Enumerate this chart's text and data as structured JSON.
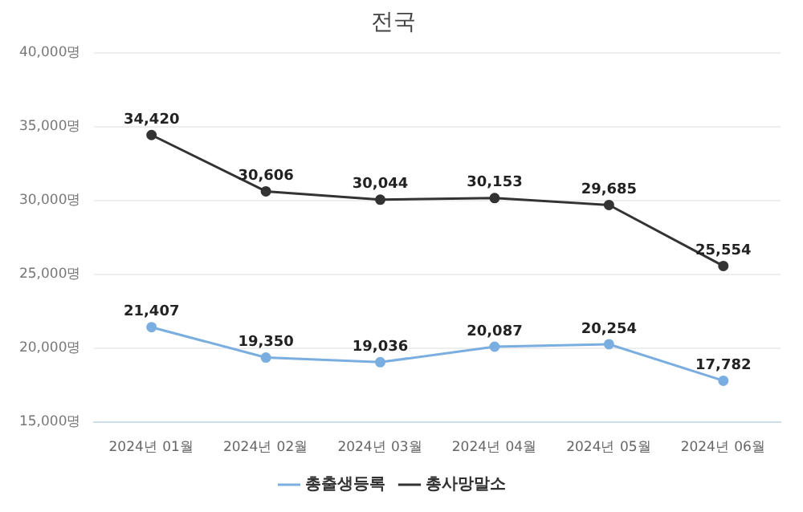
{
  "chart_data": {
    "type": "line",
    "title": "전국",
    "categories": [
      "2024년 01월",
      "2024년 02월",
      "2024년 03월",
      "2024년 04월",
      "2024년 05월",
      "2024년 06월"
    ],
    "series": [
      {
        "name": "총출생등록",
        "color": "#7aaee0",
        "values": [
          21407,
          19350,
          19036,
          20087,
          20254,
          17782
        ],
        "value_labels": [
          "21,407",
          "19,350",
          "19,036",
          "20,087",
          "20,254",
          "17,782"
        ]
      },
      {
        "name": "총사망말소",
        "color": "#333333",
        "values": [
          34420,
          30606,
          30044,
          30153,
          29685,
          25554
        ],
        "value_labels": [
          "34,420",
          "30,606",
          "30,044",
          "30,153",
          "29,685",
          "25,554"
        ]
      }
    ],
    "ylim": [
      15000,
      40000
    ],
    "yticks": [
      {
        "value": 15000,
        "label": "15,000명"
      },
      {
        "value": 20000,
        "label": "20,000명"
      },
      {
        "value": 25000,
        "label": "25,000명"
      },
      {
        "value": 30000,
        "label": "30,000명"
      },
      {
        "value": 35000,
        "label": "35,000명"
      },
      {
        "value": 40000,
        "label": "40,000명"
      }
    ],
    "grid": "y",
    "legend": "bottom",
    "marker": "circle",
    "line_style": "solid"
  }
}
